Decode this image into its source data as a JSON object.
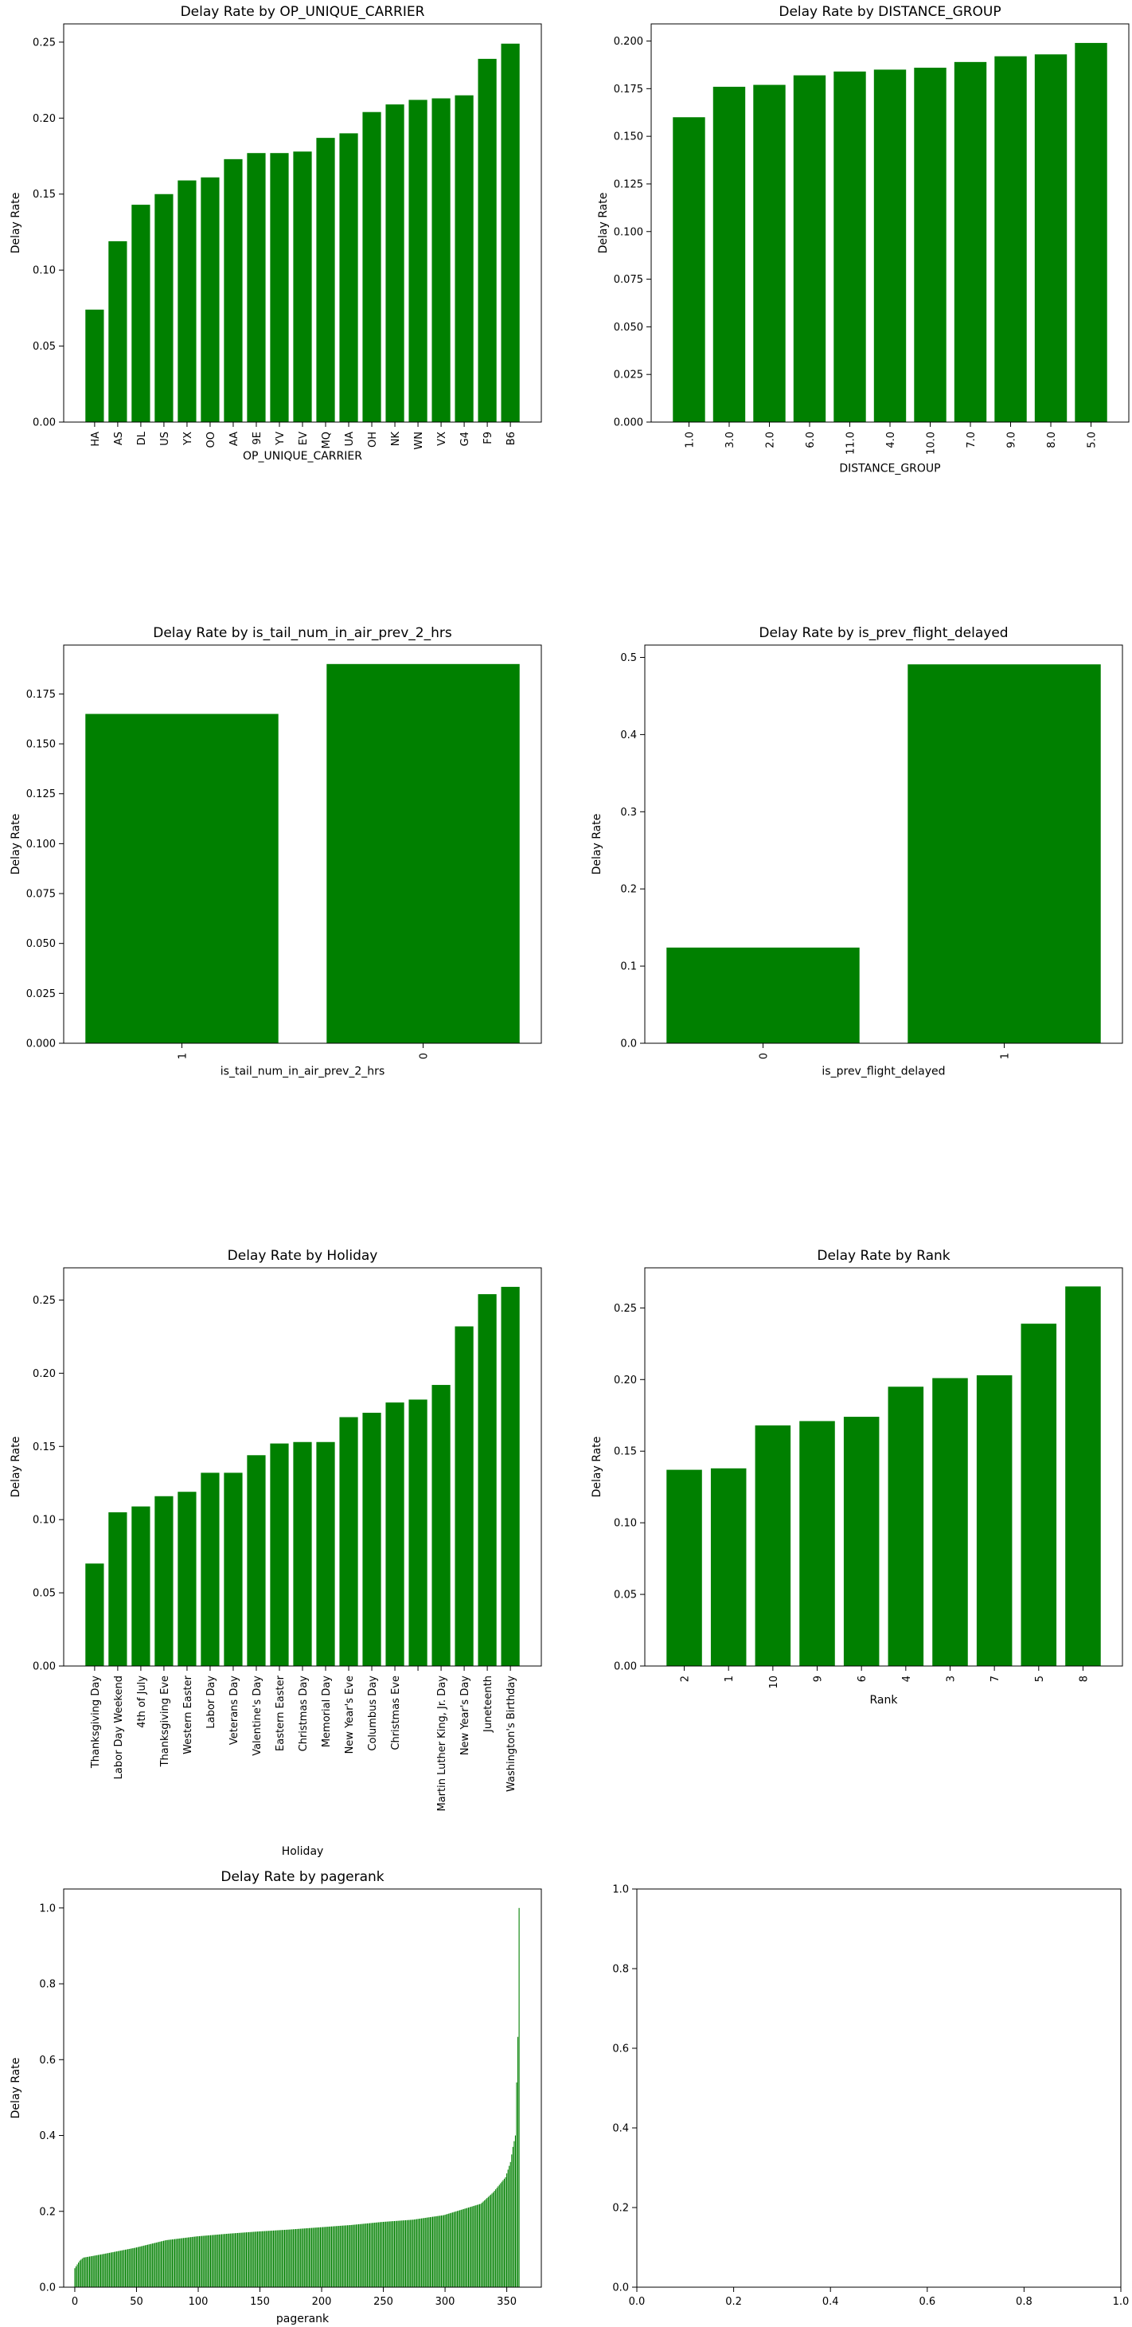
{
  "chart_data": [
    {
      "type": "bar",
      "title": "Delay Rate by OP_UNIQUE_CARRIER",
      "xlabel": "OP_UNIQUE_CARRIER",
      "ylabel": "Delay Rate",
      "ylim": [
        0,
        0.262
      ],
      "yticks": [
        0.0,
        0.05,
        0.1,
        0.15,
        0.2,
        0.25
      ],
      "ytick_labels": [
        "0.00",
        "0.05",
        "0.10",
        "0.15",
        "0.20",
        "0.25"
      ],
      "categories": [
        "HA",
        "AS",
        "DL",
        "US",
        "YX",
        "OO",
        "AA",
        "9E",
        "YV",
        "EV",
        "MQ",
        "UA",
        "OH",
        "NK",
        "WN",
        "VX",
        "G4",
        "F9",
        "B6"
      ],
      "values": [
        0.074,
        0.119,
        0.143,
        0.15,
        0.159,
        0.161,
        0.173,
        0.177,
        0.177,
        0.178,
        0.187,
        0.19,
        0.204,
        0.209,
        0.212,
        0.213,
        0.215,
        0.239,
        0.249
      ],
      "color": "#008000",
      "rotate_xticks": true
    },
    {
      "type": "bar",
      "title": "Delay Rate by DISTANCE_GROUP",
      "xlabel": "DISTANCE_GROUP",
      "ylabel": "Delay Rate",
      "ylim": [
        0,
        0.209
      ],
      "yticks": [
        0.0,
        0.025,
        0.05,
        0.075,
        0.1,
        0.125,
        0.15,
        0.175,
        0.2
      ],
      "ytick_labels": [
        "0.000",
        "0.025",
        "0.050",
        "0.075",
        "0.100",
        "0.125",
        "0.150",
        "0.175",
        "0.200"
      ],
      "categories": [
        "1.0",
        "3.0",
        "2.0",
        "6.0",
        "11.0",
        "4.0",
        "10.0",
        "7.0",
        "9.0",
        "8.0",
        "5.0"
      ],
      "values": [
        0.16,
        0.176,
        0.177,
        0.182,
        0.184,
        0.185,
        0.186,
        0.189,
        0.192,
        0.193,
        0.199
      ],
      "color": "#008000",
      "rotate_xticks": true
    },
    {
      "type": "bar",
      "title": "Delay Rate by is_tail_num_in_air_prev_2_hrs",
      "xlabel": "is_tail_num_in_air_prev_2_hrs",
      "ylabel": "Delay Rate",
      "ylim": [
        0,
        0.1995
      ],
      "yticks": [
        0.0,
        0.025,
        0.05,
        0.075,
        0.1,
        0.125,
        0.15,
        0.175
      ],
      "ytick_labels": [
        "0.000",
        "0.025",
        "0.050",
        "0.075",
        "0.100",
        "0.125",
        "0.150",
        "0.175"
      ],
      "categories": [
        "1",
        "0"
      ],
      "values": [
        0.165,
        0.19
      ],
      "color": "#008000",
      "rotate_xticks": true
    },
    {
      "type": "bar",
      "title": "Delay Rate by is_prev_flight_delayed",
      "xlabel": "is_prev_flight_delayed",
      "ylabel": "Delay Rate",
      "ylim": [
        0,
        0.516
      ],
      "yticks": [
        0.0,
        0.1,
        0.2,
        0.3,
        0.4,
        0.5
      ],
      "ytick_labels": [
        "0.0",
        "0.1",
        "0.2",
        "0.3",
        "0.4",
        "0.5"
      ],
      "categories": [
        "0",
        "1"
      ],
      "values": [
        0.124,
        0.491
      ],
      "color": "#008000",
      "rotate_xticks": true
    },
    {
      "type": "bar",
      "title": "Delay Rate by Holiday",
      "xlabel": "Holiday",
      "ylabel": "Delay Rate",
      "ylim": [
        0,
        0.272
      ],
      "yticks": [
        0.0,
        0.05,
        0.1,
        0.15,
        0.2,
        0.25
      ],
      "ytick_labels": [
        "0.00",
        "0.05",
        "0.10",
        "0.15",
        "0.20",
        "0.25"
      ],
      "categories": [
        "Thanksgiving Day",
        "Labor Day Weekend",
        "4th of July",
        "Thanksgiving Eve",
        "Western Easter",
        "Labor Day",
        "Veterans Day",
        "Valentine's Day",
        "Eastern Easter",
        "Christmas Day",
        "Memorial Day",
        "New Year's Eve",
        "Columbus Day",
        "Christmas Eve",
        "",
        "Martin Luther King, Jr. Day",
        "New Year's Day",
        "Juneteenth",
        "Washington's Birthday"
      ],
      "values": [
        0.07,
        0.105,
        0.109,
        0.116,
        0.119,
        0.132,
        0.132,
        0.144,
        0.152,
        0.153,
        0.153,
        0.17,
        0.173,
        0.18,
        0.182,
        0.192,
        0.232,
        0.254,
        0.259
      ],
      "color": "#008000",
      "rotate_xticks": true
    },
    {
      "type": "bar",
      "title": "Delay Rate by Rank",
      "xlabel": "Rank",
      "ylabel": "Delay Rate",
      "ylim": [
        0,
        0.278
      ],
      "yticks": [
        0.0,
        0.05,
        0.1,
        0.15,
        0.2,
        0.25
      ],
      "ytick_labels": [
        "0.00",
        "0.05",
        "0.10",
        "0.15",
        "0.20",
        "0.25"
      ],
      "categories": [
        "2",
        "1",
        "10",
        "9",
        "6",
        "4",
        "3",
        "7",
        "5",
        "8"
      ],
      "values": [
        0.137,
        0.138,
        0.168,
        0.171,
        0.174,
        0.195,
        0.201,
        0.203,
        0.239,
        0.265
      ],
      "color": "#008000",
      "rotate_xticks": true
    },
    {
      "type": "bar",
      "title": "Delay Rate by pagerank",
      "xlabel": "pagerank",
      "ylabel": "Delay Rate",
      "ylim": [
        0,
        1.05
      ],
      "xlim": [
        -9,
        378
      ],
      "xticks": [
        0,
        50,
        100,
        150,
        200,
        250,
        300,
        350
      ],
      "xtick_labels": [
        "0",
        "50",
        "100",
        "150",
        "200",
        "250",
        "300",
        "350"
      ],
      "yticks": [
        0.0,
        0.2,
        0.4,
        0.6,
        0.8,
        1.0
      ],
      "ytick_labels": [
        "0.0",
        "0.2",
        "0.4",
        "0.6",
        "0.8",
        "1.0"
      ],
      "n_bars": 361,
      "curve": [
        [
          0,
          0.02
        ],
        [
          1,
          0.05
        ],
        [
          3,
          0.06
        ],
        [
          5,
          0.07
        ],
        [
          8,
          0.078
        ],
        [
          15,
          0.082
        ],
        [
          25,
          0.088
        ],
        [
          50,
          0.104
        ],
        [
          75,
          0.124
        ],
        [
          100,
          0.134
        ],
        [
          125,
          0.141
        ],
        [
          150,
          0.147
        ],
        [
          175,
          0.152
        ],
        [
          200,
          0.158
        ],
        [
          225,
          0.164
        ],
        [
          250,
          0.172
        ],
        [
          275,
          0.178
        ],
        [
          300,
          0.19
        ],
        [
          320,
          0.21
        ],
        [
          330,
          0.22
        ],
        [
          340,
          0.25
        ],
        [
          350,
          0.29
        ],
        [
          354,
          0.33
        ],
        [
          356,
          0.37
        ],
        [
          358,
          0.4
        ],
        [
          359,
          0.54
        ],
        [
          360,
          0.66
        ],
        [
          361,
          1.0
        ]
      ],
      "color": "#008000"
    },
    {
      "type": "empty",
      "xlim": [
        0,
        1
      ],
      "ylim": [
        0,
        1
      ],
      "xticks": [
        0.0,
        0.2,
        0.4,
        0.6,
        0.8,
        1.0
      ],
      "xtick_labels": [
        "0.0",
        "0.2",
        "0.4",
        "0.6",
        "0.8",
        "1.0"
      ],
      "yticks": [
        0.0,
        0.2,
        0.4,
        0.6,
        0.8,
        1.0
      ],
      "ytick_labels": [
        "0.0",
        "0.2",
        "0.4",
        "0.6",
        "0.8",
        "1.0"
      ]
    }
  ]
}
